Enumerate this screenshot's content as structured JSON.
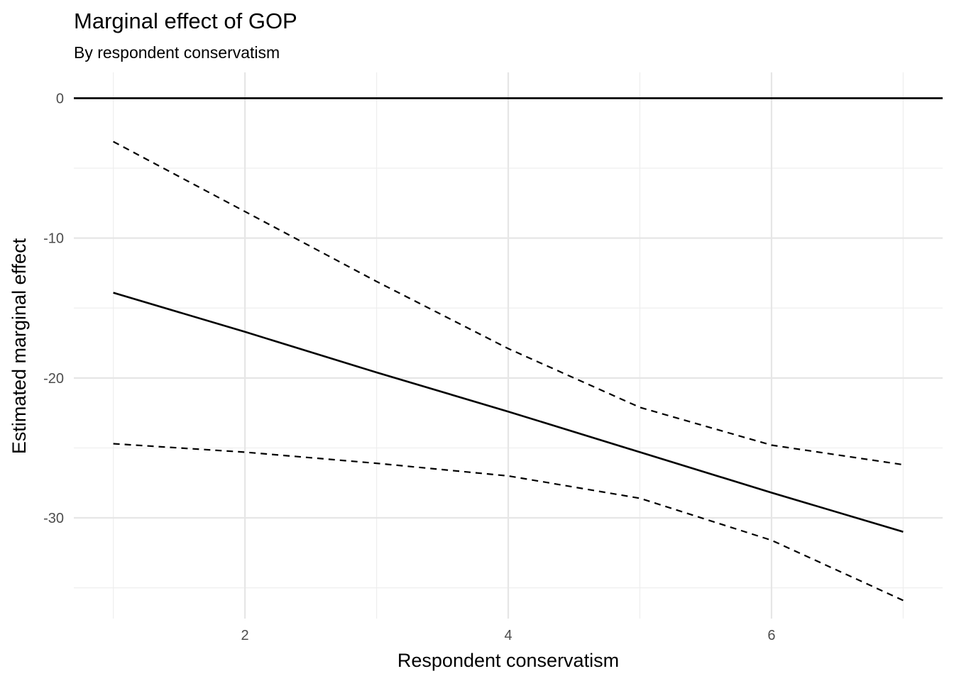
{
  "chart_data": {
    "type": "line",
    "title": "Marginal effect of GOP",
    "subtitle": "By respondent conservatism",
    "xlabel": "Respondent conservatism",
    "ylabel": "Estimated marginal effect",
    "xlim": [
      0.7,
      7.3
    ],
    "ylim": [
      -37.2,
      1.85
    ],
    "x_ticks": [
      2,
      4,
      6
    ],
    "y_ticks": [
      0,
      -10,
      -20,
      -30
    ],
    "x_minor": [
      1,
      3,
      5,
      7
    ],
    "y_minor": [
      -5,
      -15,
      -25,
      -35
    ],
    "grid": true,
    "hline": 0,
    "series": [
      {
        "role": "estimate",
        "style": "solid",
        "x": [
          1,
          2,
          3,
          4,
          5,
          6,
          7
        ],
        "y": [
          -13.9,
          -16.7,
          -19.6,
          -22.4,
          -25.3,
          -28.2,
          -31.0
        ]
      },
      {
        "role": "upper",
        "style": "dashed",
        "x": [
          1,
          2,
          3,
          4,
          5,
          6,
          7
        ],
        "y": [
          -3.1,
          -8.1,
          -13.1,
          -17.9,
          -22.1,
          -24.8,
          -26.2
        ]
      },
      {
        "role": "lower",
        "style": "dashed",
        "x": [
          1,
          2,
          3,
          4,
          5,
          6,
          7
        ],
        "y": [
          -24.7,
          -25.3,
          -26.1,
          -27.0,
          -28.6,
          -31.6,
          -35.9
        ]
      }
    ]
  }
}
